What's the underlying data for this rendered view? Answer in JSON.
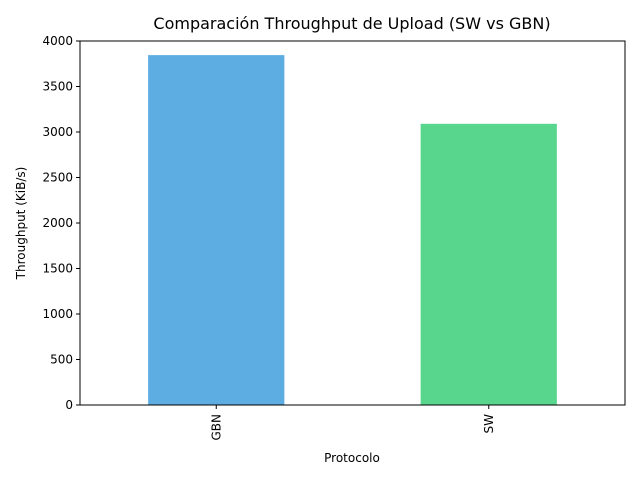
{
  "chart_data": {
    "type": "bar",
    "title": "Comparación Throughput de Upload (SW vs GBN)",
    "xlabel": "Protocolo",
    "ylabel": "Throughput (KiB/s)",
    "categories": [
      "GBN",
      "SW"
    ],
    "values": [
      3845,
      3090
    ],
    "colors": [
      "#5dade2",
      "#58d68d"
    ],
    "ylim": [
      0,
      4000
    ],
    "yticks": [
      0,
      500,
      1000,
      1500,
      2000,
      2500,
      3000,
      3500,
      4000
    ],
    "grid": false,
    "legend": false
  }
}
